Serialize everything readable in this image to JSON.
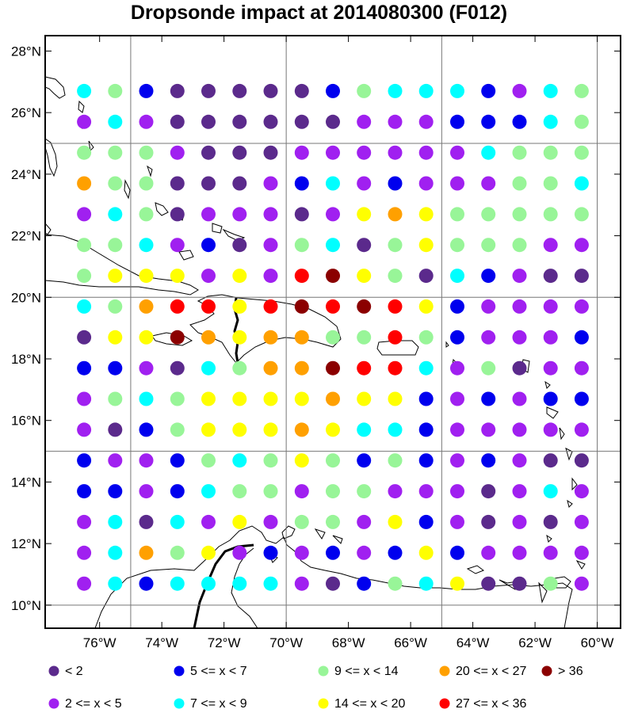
{
  "title": "Dropsonde impact at 2014080300 (F012)",
  "map": {
    "extent": {
      "lon": [
        -77.75,
        -59.25
      ],
      "lat": [
        9.25,
        28.5
      ]
    },
    "grid_lons": [
      -75,
      -70,
      -65,
      -60
    ],
    "grid_lats": [
      10,
      15,
      20,
      25
    ],
    "lon_ticks": [
      {
        "value": -76,
        "label": "76°W"
      },
      {
        "value": -74,
        "label": "74°W"
      },
      {
        "value": -72,
        "label": "72°W"
      },
      {
        "value": -70,
        "label": "70°W"
      },
      {
        "value": -68,
        "label": "68°W"
      },
      {
        "value": -66,
        "label": "66°W"
      },
      {
        "value": -64,
        "label": "64°W"
      },
      {
        "value": -62,
        "label": "62°W"
      },
      {
        "value": -60,
        "label": "60°W"
      }
    ],
    "lat_ticks": [
      {
        "value": 10,
        "label": "10°N"
      },
      {
        "value": 12,
        "label": "12°N"
      },
      {
        "value": 14,
        "label": "14°N"
      },
      {
        "value": 16,
        "label": "16°N"
      },
      {
        "value": 18,
        "label": "18°N"
      },
      {
        "value": 20,
        "label": "20°N"
      },
      {
        "value": 22,
        "label": "22°N"
      },
      {
        "value": 24,
        "label": "24°N"
      },
      {
        "value": 26,
        "label": "26°N"
      },
      {
        "value": 28,
        "label": "28°N"
      }
    ]
  },
  "categories": [
    {
      "id": 0,
      "label": "<  2",
      "color": "#5b2a8c"
    },
    {
      "id": 1,
      "label": "2 <= x <  5",
      "color": "#a020f0"
    },
    {
      "id": 2,
      "label": "5 <= x <  7",
      "color": "#0000ee"
    },
    {
      "id": 3,
      "label": "7 <= x <  9",
      "color": "#00ffff"
    },
    {
      "id": 4,
      "label": "9 <= x < 14",
      "color": "#98f598"
    },
    {
      "id": 5,
      "label": "14 <= x < 20",
      "color": "#ffff00"
    },
    {
      "id": 6,
      "label": "20 <= x < 27",
      "color": "#ffa000"
    },
    {
      "id": 7,
      "label": "27 <= x < 36",
      "color": "#ff0000"
    },
    {
      "id": 8,
      "label": "> 36",
      "color": "#8b0000"
    }
  ],
  "legend_layout": [
    [
      0,
      2,
      4,
      6,
      8
    ],
    [
      1,
      3,
      5,
      7
    ]
  ],
  "points": {
    "lons": [
      -76.5,
      -75.5,
      -74.5,
      -73.5,
      -72.5,
      -71.5,
      -70.5,
      -69.5,
      -68.5,
      -67.5,
      -66.5,
      -65.5,
      -64.5,
      -63.5,
      -62.5,
      -61.5,
      -60.5
    ],
    "lats": [
      26.7,
      25.7,
      24.7,
      23.7,
      22.7,
      21.7,
      20.7,
      19.7,
      18.7,
      17.7,
      16.7,
      15.7,
      14.7,
      13.7,
      12.7,
      11.7,
      10.7
    ],
    "rows": [
      [
        3,
        4,
        2,
        0,
        0,
        0,
        0,
        0,
        2,
        4,
        3,
        3,
        3,
        2,
        1,
        3,
        4
      ],
      [
        1,
        3,
        1,
        0,
        0,
        0,
        0,
        0,
        0,
        1,
        1,
        1,
        2,
        2,
        2,
        3,
        4
      ],
      [
        4,
        4,
        4,
        1,
        0,
        0,
        0,
        1,
        1,
        1,
        1,
        1,
        1,
        3,
        4,
        4,
        4
      ],
      [
        6,
        4,
        4,
        0,
        0,
        0,
        1,
        2,
        3,
        1,
        2,
        1,
        1,
        1,
        4,
        4,
        3
      ],
      [
        1,
        3,
        4,
        0,
        1,
        1,
        1,
        0,
        1,
        5,
        6,
        5,
        4,
        4,
        4,
        4,
        4
      ],
      [
        4,
        4,
        3,
        1,
        2,
        0,
        1,
        4,
        3,
        0,
        4,
        5,
        4,
        4,
        4,
        1,
        1
      ],
      [
        4,
        5,
        5,
        5,
        1,
        5,
        1,
        7,
        8,
        5,
        4,
        0,
        3,
        2,
        1,
        0,
        0
      ],
      [
        3,
        4,
        6,
        7,
        7,
        5,
        7,
        8,
        7,
        8,
        7,
        5,
        2,
        1,
        1,
        1,
        1
      ],
      [
        0,
        5,
        5,
        8,
        6,
        5,
        6,
        6,
        4,
        4,
        7,
        4,
        2,
        1,
        1,
        1,
        2
      ],
      [
        2,
        2,
        1,
        0,
        3,
        4,
        6,
        6,
        8,
        7,
        7,
        3,
        1,
        4,
        0,
        1,
        1
      ],
      [
        1,
        4,
        3,
        4,
        5,
        5,
        5,
        5,
        6,
        5,
        5,
        2,
        1,
        2,
        1,
        2,
        2
      ],
      [
        1,
        0,
        2,
        4,
        5,
        5,
        5,
        6,
        5,
        3,
        3,
        2,
        1,
        1,
        1,
        1,
        1
      ],
      [
        2,
        1,
        1,
        2,
        4,
        3,
        4,
        5,
        4,
        2,
        4,
        2,
        1,
        2,
        1,
        0,
        0
      ],
      [
        2,
        2,
        1,
        2,
        3,
        4,
        4,
        1,
        4,
        4,
        1,
        1,
        1,
        0,
        1,
        3,
        1
      ],
      [
        1,
        3,
        0,
        3,
        1,
        5,
        1,
        4,
        4,
        1,
        5,
        2,
        1,
        0,
        1,
        0,
        1
      ],
      [
        1,
        3,
        6,
        4,
        5,
        1,
        2,
        1,
        2,
        1,
        2,
        5,
        2,
        1,
        1,
        1,
        1
      ],
      [
        1,
        3,
        2,
        3,
        3,
        3,
        3,
        1,
        0,
        2,
        4,
        3,
        5,
        0,
        0,
        4,
        1
      ]
    ]
  }
}
